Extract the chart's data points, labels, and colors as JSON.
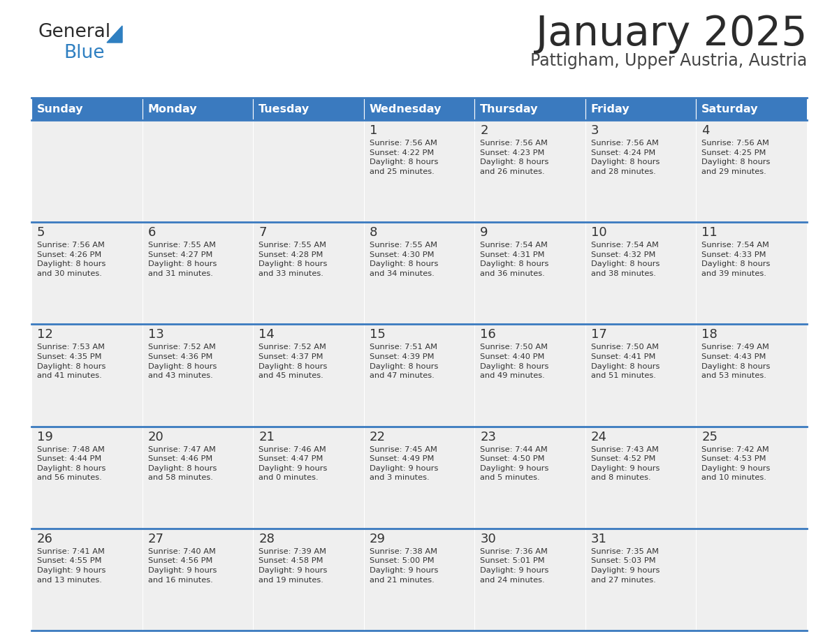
{
  "title": "January 2025",
  "subtitle": "Pattigham, Upper Austria, Austria",
  "header_bg": "#3a7abf",
  "header_text_color": "#ffffff",
  "cell_bg_light": "#efefef",
  "day_headers": [
    "Sunday",
    "Monday",
    "Tuesday",
    "Wednesday",
    "Thursday",
    "Friday",
    "Saturday"
  ],
  "title_color": "#2b2b2b",
  "subtitle_color": "#444444",
  "cell_text_color": "#333333",
  "border_color": "#3a7abf",
  "days": [
    {
      "row": 0,
      "col": 0,
      "date": "",
      "sunrise": "",
      "sunset": "",
      "daylight": ""
    },
    {
      "row": 0,
      "col": 1,
      "date": "",
      "sunrise": "",
      "sunset": "",
      "daylight": ""
    },
    {
      "row": 0,
      "col": 2,
      "date": "",
      "sunrise": "",
      "sunset": "",
      "daylight": ""
    },
    {
      "row": 0,
      "col": 3,
      "date": "1",
      "sunrise": "7:56 AM",
      "sunset": "4:22 PM",
      "daylight": "8 hours\nand 25 minutes."
    },
    {
      "row": 0,
      "col": 4,
      "date": "2",
      "sunrise": "7:56 AM",
      "sunset": "4:23 PM",
      "daylight": "8 hours\nand 26 minutes."
    },
    {
      "row": 0,
      "col": 5,
      "date": "3",
      "sunrise": "7:56 AM",
      "sunset": "4:24 PM",
      "daylight": "8 hours\nand 28 minutes."
    },
    {
      "row": 0,
      "col": 6,
      "date": "4",
      "sunrise": "7:56 AM",
      "sunset": "4:25 PM",
      "daylight": "8 hours\nand 29 minutes."
    },
    {
      "row": 1,
      "col": 0,
      "date": "5",
      "sunrise": "7:56 AM",
      "sunset": "4:26 PM",
      "daylight": "8 hours\nand 30 minutes."
    },
    {
      "row": 1,
      "col": 1,
      "date": "6",
      "sunrise": "7:55 AM",
      "sunset": "4:27 PM",
      "daylight": "8 hours\nand 31 minutes."
    },
    {
      "row": 1,
      "col": 2,
      "date": "7",
      "sunrise": "7:55 AM",
      "sunset": "4:28 PM",
      "daylight": "8 hours\nand 33 minutes."
    },
    {
      "row": 1,
      "col": 3,
      "date": "8",
      "sunrise": "7:55 AM",
      "sunset": "4:30 PM",
      "daylight": "8 hours\nand 34 minutes."
    },
    {
      "row": 1,
      "col": 4,
      "date": "9",
      "sunrise": "7:54 AM",
      "sunset": "4:31 PM",
      "daylight": "8 hours\nand 36 minutes."
    },
    {
      "row": 1,
      "col": 5,
      "date": "10",
      "sunrise": "7:54 AM",
      "sunset": "4:32 PM",
      "daylight": "8 hours\nand 38 minutes."
    },
    {
      "row": 1,
      "col": 6,
      "date": "11",
      "sunrise": "7:54 AM",
      "sunset": "4:33 PM",
      "daylight": "8 hours\nand 39 minutes."
    },
    {
      "row": 2,
      "col": 0,
      "date": "12",
      "sunrise": "7:53 AM",
      "sunset": "4:35 PM",
      "daylight": "8 hours\nand 41 minutes."
    },
    {
      "row": 2,
      "col": 1,
      "date": "13",
      "sunrise": "7:52 AM",
      "sunset": "4:36 PM",
      "daylight": "8 hours\nand 43 minutes."
    },
    {
      "row": 2,
      "col": 2,
      "date": "14",
      "sunrise": "7:52 AM",
      "sunset": "4:37 PM",
      "daylight": "8 hours\nand 45 minutes."
    },
    {
      "row": 2,
      "col": 3,
      "date": "15",
      "sunrise": "7:51 AM",
      "sunset": "4:39 PM",
      "daylight": "8 hours\nand 47 minutes."
    },
    {
      "row": 2,
      "col": 4,
      "date": "16",
      "sunrise": "7:50 AM",
      "sunset": "4:40 PM",
      "daylight": "8 hours\nand 49 minutes."
    },
    {
      "row": 2,
      "col": 5,
      "date": "17",
      "sunrise": "7:50 AM",
      "sunset": "4:41 PM",
      "daylight": "8 hours\nand 51 minutes."
    },
    {
      "row": 2,
      "col": 6,
      "date": "18",
      "sunrise": "7:49 AM",
      "sunset": "4:43 PM",
      "daylight": "8 hours\nand 53 minutes."
    },
    {
      "row": 3,
      "col": 0,
      "date": "19",
      "sunrise": "7:48 AM",
      "sunset": "4:44 PM",
      "daylight": "8 hours\nand 56 minutes."
    },
    {
      "row": 3,
      "col": 1,
      "date": "20",
      "sunrise": "7:47 AM",
      "sunset": "4:46 PM",
      "daylight": "8 hours\nand 58 minutes."
    },
    {
      "row": 3,
      "col": 2,
      "date": "21",
      "sunrise": "7:46 AM",
      "sunset": "4:47 PM",
      "daylight": "9 hours\nand 0 minutes."
    },
    {
      "row": 3,
      "col": 3,
      "date": "22",
      "sunrise": "7:45 AM",
      "sunset": "4:49 PM",
      "daylight": "9 hours\nand 3 minutes."
    },
    {
      "row": 3,
      "col": 4,
      "date": "23",
      "sunrise": "7:44 AM",
      "sunset": "4:50 PM",
      "daylight": "9 hours\nand 5 minutes."
    },
    {
      "row": 3,
      "col": 5,
      "date": "24",
      "sunrise": "7:43 AM",
      "sunset": "4:52 PM",
      "daylight": "9 hours\nand 8 minutes."
    },
    {
      "row": 3,
      "col": 6,
      "date": "25",
      "sunrise": "7:42 AM",
      "sunset": "4:53 PM",
      "daylight": "9 hours\nand 10 minutes."
    },
    {
      "row": 4,
      "col": 0,
      "date": "26",
      "sunrise": "7:41 AM",
      "sunset": "4:55 PM",
      "daylight": "9 hours\nand 13 minutes."
    },
    {
      "row": 4,
      "col": 1,
      "date": "27",
      "sunrise": "7:40 AM",
      "sunset": "4:56 PM",
      "daylight": "9 hours\nand 16 minutes."
    },
    {
      "row": 4,
      "col": 2,
      "date": "28",
      "sunrise": "7:39 AM",
      "sunset": "4:58 PM",
      "daylight": "9 hours\nand 19 minutes."
    },
    {
      "row": 4,
      "col": 3,
      "date": "29",
      "sunrise": "7:38 AM",
      "sunset": "5:00 PM",
      "daylight": "9 hours\nand 21 minutes."
    },
    {
      "row": 4,
      "col": 4,
      "date": "30",
      "sunrise": "7:36 AM",
      "sunset": "5:01 PM",
      "daylight": "9 hours\nand 24 minutes."
    },
    {
      "row": 4,
      "col": 5,
      "date": "31",
      "sunrise": "7:35 AM",
      "sunset": "5:03 PM",
      "daylight": "9 hours\nand 27 minutes."
    },
    {
      "row": 4,
      "col": 6,
      "date": "",
      "sunrise": "",
      "sunset": "",
      "daylight": ""
    }
  ],
  "logo_general_color": "#2b2b2b",
  "logo_blue_color": "#2e7fc1",
  "logo_triangle_color": "#2e7fc1"
}
